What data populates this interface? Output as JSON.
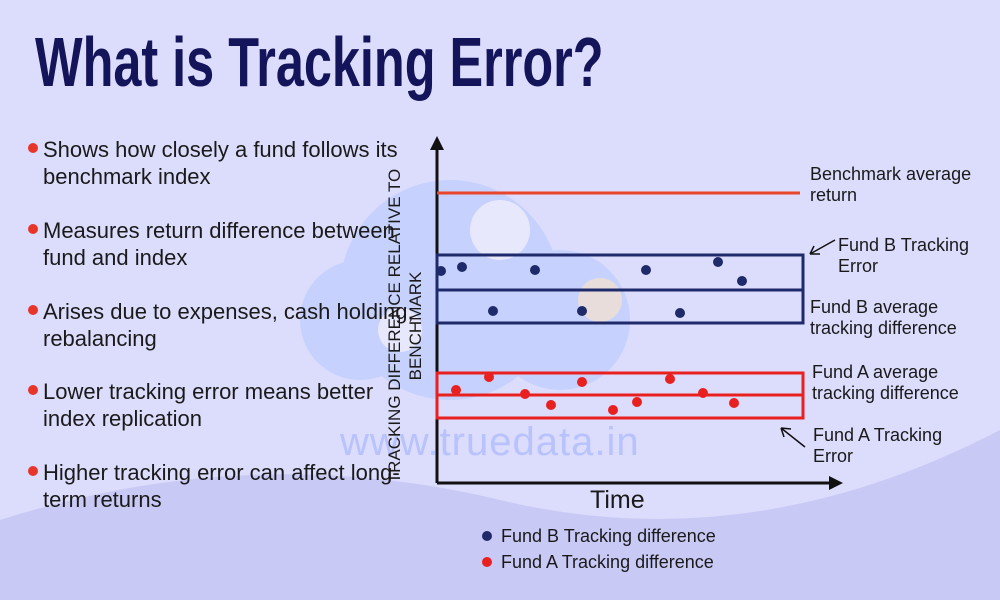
{
  "header": {
    "title": "What is Tracking Error?"
  },
  "bullets": [
    "Shows how closely a fund follows its benchmark index",
    "Measures return difference between fund and index",
    "Arises due to expenses, cash holding, rebalancing",
    "Lower tracking error means better index replication",
    "Higher tracking error can affect long-term returns"
  ],
  "chart": {
    "y_axis_label": "TRACKING DIFFERENCE RELATIVE TO BENCHMARK",
    "x_axis_label": "Time",
    "annotations": [
      "Benchmark average return",
      "Fund B Tracking Error",
      "Fund B average tracking difference",
      "Fund A average tracking difference",
      "Fund A Tracking Error"
    ],
    "legend": [
      "Fund B Tracking difference",
      "Fund A Tracking difference"
    ]
  },
  "watermark": "www.truedata.in"
}
